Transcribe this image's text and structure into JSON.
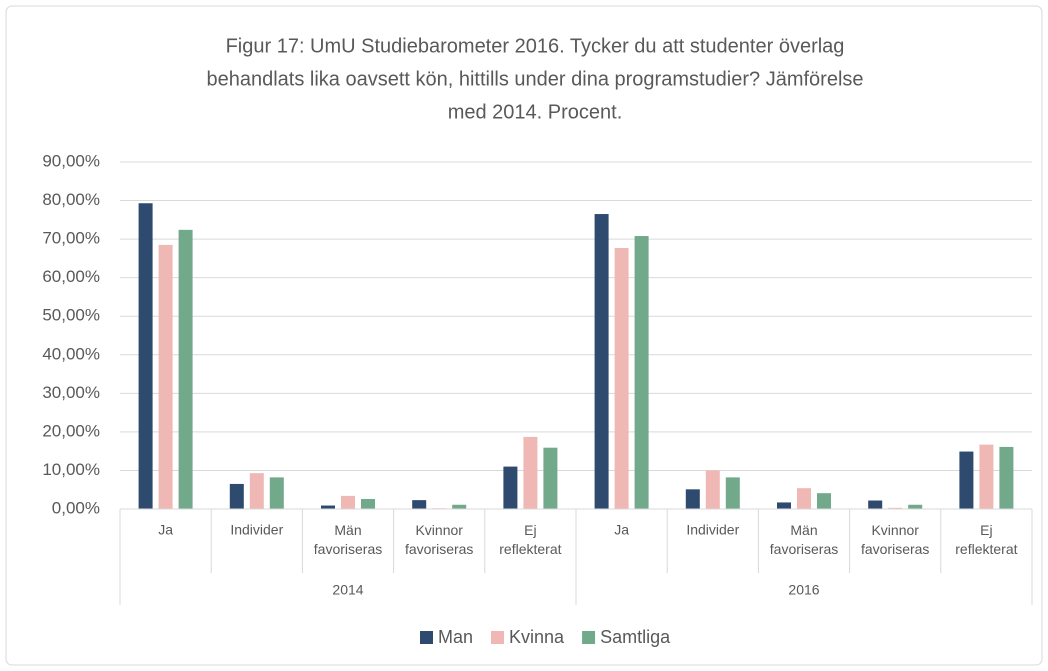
{
  "chart_data": {
    "type": "bar",
    "title": [
      "Figur 17: UmU Studiebarometer 2016. Tycker du att studenter överlag",
      "behandlats lika oavsett kön, hittills under dina programstudier? Jämförelse",
      "med 2014. Procent."
    ],
    "groups": [
      "2014",
      "2016"
    ],
    "categories": [
      "Ja",
      "Individer",
      "Män favoriseras",
      "Kvinnor favoriseras",
      "Ej reflekterat",
      "Ja",
      "Individer",
      "Män favoriseras",
      "Kvinnor favoriseras",
      "Ej reflekterat"
    ],
    "series": [
      {
        "name": "Man",
        "color": "#2e4a6e",
        "values": [
          79.3,
          6.5,
          0.9,
          2.3,
          11.0,
          76.5,
          5.1,
          1.7,
          2.2,
          14.9
        ]
      },
      {
        "name": "Kvinna",
        "color": "#f0b8b4",
        "values": [
          68.5,
          9.3,
          3.4,
          0.2,
          18.7,
          67.7,
          10.0,
          5.4,
          0.3,
          16.7
        ]
      },
      {
        "name": "Samtliga",
        "color": "#72a98a",
        "values": [
          72.4,
          8.2,
          2.6,
          1.1,
          15.9,
          70.8,
          8.2,
          4.1,
          1.1,
          16.1
        ]
      }
    ],
    "ylim": [
      0,
      90
    ],
    "yticks": [
      {
        "value": 0,
        "label": "0,00%"
      },
      {
        "value": 10,
        "label": "10,00%"
      },
      {
        "value": 20,
        "label": "20,00%"
      },
      {
        "value": 30,
        "label": "30,00%"
      },
      {
        "value": 40,
        "label": "40,00%"
      },
      {
        "value": 50,
        "label": "50,00%"
      },
      {
        "value": 60,
        "label": "60,00%"
      },
      {
        "value": 70,
        "label": "70,00%"
      },
      {
        "value": 80,
        "label": "80,00%"
      },
      {
        "value": 90,
        "label": "90,00%"
      }
    ],
    "grid": true,
    "legend": "bottom"
  }
}
